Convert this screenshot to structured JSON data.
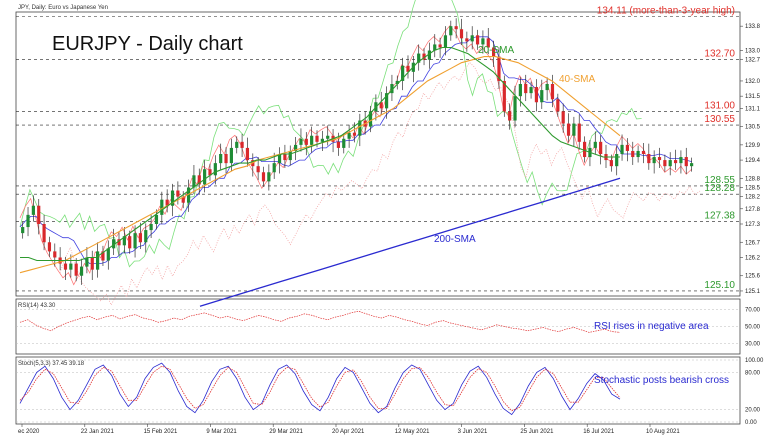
{
  "header": {
    "info": "JPY, Daily: Euro vs Japanese Yen",
    "title": "EURJPY - Daily chart"
  },
  "chart_data": {
    "type": "candlestick",
    "title": "EURJPY - Daily chart",
    "x_ticks": [
      "ec 2020",
      "22 Jan 2021",
      "15 Feb 2021",
      "9 Mar 2021",
      "29 Mar 2021",
      "20 Apr 2021",
      "12 May 2021",
      "3 Jun 2021",
      "25 Jun 2021",
      "16 Jul 2021",
      "10 Aug 2021"
    ],
    "y_ticks": [
      "133.8",
      "133.0",
      "132.7",
      "132.0",
      "131.5",
      "131.1",
      "130.5",
      "129.9",
      "129.4",
      "128.8",
      "128.5",
      "128.2",
      "127.8",
      "127.3",
      "126.7",
      "126.2",
      "125.6",
      "125.1"
    ],
    "ylim": [
      125.0,
      134.2
    ],
    "levels": [
      {
        "label": "134.11 (more-than-3-year high)",
        "value": 134.11,
        "color": "#e0302a"
      },
      {
        "label": "132.70",
        "value": 132.7,
        "color": "#e0302a"
      },
      {
        "label": "131.00",
        "value": 131.0,
        "color": "#e0302a"
      },
      {
        "label": "130.55",
        "value": 130.55,
        "color": "#e0302a"
      },
      {
        "label": "128.55",
        "value": 128.55,
        "color": "#2e9a2e"
      },
      {
        "label": "128.28",
        "value": 128.28,
        "color": "#2e9a2e"
      },
      {
        "label": "127.38",
        "value": 127.38,
        "color": "#2e9a2e"
      },
      {
        "label": "125.10",
        "value": 125.1,
        "color": "#2e9a2e"
      }
    ],
    "close": [
      127.2,
      127.6,
      127.9,
      127.3,
      126.7,
      126.4,
      126.2,
      126.0,
      125.8,
      126.0,
      125.6,
      125.9,
      126.2,
      125.8,
      126.4,
      126.1,
      126.5,
      126.8,
      126.6,
      126.9,
      126.5,
      127.0,
      126.7,
      127.1,
      127.3,
      127.6,
      128.1,
      127.9,
      128.4,
      128.2,
      128.0,
      128.5,
      128.9,
      128.6,
      129.1,
      128.9,
      129.3,
      129.6,
      129.3,
      129.8,
      130.0,
      129.8,
      129.4,
      129.2,
      129.0,
      128.7,
      129.0,
      129.3,
      129.6,
      129.4,
      129.7,
      129.9,
      130.1,
      129.9,
      130.2,
      130.0,
      130.1,
      130.2,
      130.0,
      129.8,
      130.1,
      130.3,
      130.2,
      130.7,
      130.5,
      131.0,
      131.3,
      131.1,
      131.6,
      131.9,
      132.0,
      132.5,
      132.3,
      132.6,
      132.9,
      132.7,
      133.0,
      133.2,
      133.1,
      133.5,
      133.8,
      133.7,
      133.4,
      133.3,
      133.5,
      133.2,
      133.4,
      133.1,
      132.8,
      132.0,
      131.0,
      130.7,
      131.5,
      131.9,
      131.6,
      131.8,
      131.3,
      131.7,
      131.9,
      131.4,
      131.0,
      130.6,
      130.2,
      130.6,
      130.0,
      129.5,
      129.8,
      130.0,
      129.6,
      129.4,
      129.2,
      129.6,
      129.9,
      129.7,
      129.5,
      129.7,
      129.6,
      129.3,
      129.5,
      129.4,
      129.2,
      129.4,
      129.3,
      129.5,
      129.2,
      129.3
    ],
    "sma20": [
      126.2,
      126.2,
      126.1,
      126.1,
      126.1,
      126.1,
      126.1,
      126.1,
      126.2,
      126.2,
      126.4,
      126.6,
      126.8,
      127.0,
      127.2,
      127.4,
      127.6,
      127.8,
      128.0,
      128.2,
      128.4,
      128.6,
      128.8,
      129.0,
      129.1,
      129.2,
      129.3,
      129.3,
      129.4,
      129.4,
      129.5,
      129.6,
      129.6,
      129.7,
      129.8,
      129.9,
      130.0,
      130.1,
      130.2,
      130.4,
      130.6,
      130.8,
      131.1,
      131.4,
      131.7,
      132.0,
      132.3,
      132.6,
      132.8,
      133.0,
      133.1,
      133.1,
      133.0,
      132.9,
      132.7,
      132.5,
      132.3,
      132.0,
      131.7,
      131.4,
      131.1,
      130.8,
      130.5,
      130.2,
      130.0,
      129.9,
      129.8,
      129.7,
      129.6,
      129.5,
      129.5,
      129.5
    ],
    "sma40": [
      125.7,
      125.8,
      125.9,
      126.0,
      126.1,
      126.3,
      126.5,
      126.7,
      126.9,
      127.1,
      127.3,
      127.5,
      127.7,
      127.9,
      128.1,
      128.3,
      128.5,
      128.7,
      128.9,
      129.1,
      129.2,
      129.4,
      129.5,
      129.6,
      129.7,
      129.8,
      129.9,
      130.0,
      130.1,
      130.3,
      130.5,
      130.7,
      130.9,
      131.1,
      131.4,
      131.7,
      132.0,
      132.2,
      132.4,
      132.6,
      132.7,
      132.8,
      132.8,
      132.7,
      132.6,
      132.4,
      132.2,
      132.0,
      131.7,
      131.4,
      131.1,
      130.8,
      130.5,
      130.2
    ],
    "sma200": [
      124.6,
      124.8,
      125.0,
      125.2,
      125.4,
      125.6,
      125.8,
      126.0,
      126.2,
      126.4,
      126.6,
      126.8,
      127.0,
      127.2,
      127.4,
      127.6,
      127.8,
      128.0,
      128.2,
      128.4,
      128.6,
      128.8
    ],
    "annotations": [
      "20-SMA",
      "40-SMA",
      "200-SMA"
    ],
    "rsi": {
      "label": "RSI(14) 43.30",
      "note": "RSI rises in negative area",
      "ticks": [
        "70.00",
        "50.00",
        "30.00"
      ],
      "values": [
        55,
        58,
        52,
        48,
        45,
        50,
        54,
        57,
        60,
        62,
        58,
        61,
        63,
        59,
        62,
        64,
        60,
        58,
        55,
        57,
        60,
        58,
        62,
        64,
        66,
        63,
        60,
        62,
        59,
        57,
        60,
        63,
        61,
        58,
        56,
        60,
        62,
        65,
        63,
        60,
        58,
        61,
        63,
        66,
        68,
        65,
        62,
        60,
        63,
        61,
        58,
        56,
        53,
        51,
        55,
        57,
        54,
        52,
        50,
        48,
        46,
        49,
        52,
        50,
        48,
        47,
        45,
        47,
        49,
        46,
        44,
        47,
        49,
        46,
        43,
        45,
        47,
        44,
        43
      ]
    },
    "stochastic": {
      "label": "Stoch(5,3,3) 37.45 39.18",
      "note": "Stochastic posts bearish cross",
      "ticks": [
        "100.00",
        "80.00",
        "20.00",
        "0.00"
      ],
      "k": [
        30,
        55,
        80,
        90,
        70,
        40,
        20,
        35,
        60,
        85,
        92,
        75,
        45,
        25,
        40,
        70,
        88,
        95,
        80,
        50,
        25,
        15,
        35,
        65,
        85,
        90,
        70,
        40,
        20,
        30,
        60,
        85,
        92,
        78,
        50,
        28,
        18,
        40,
        70,
        88,
        80,
        55,
        30,
        15,
        25,
        55,
        80,
        92,
        85,
        60,
        35,
        20,
        30,
        60,
        82,
        90,
        72,
        45,
        22,
        12,
        30,
        58,
        80,
        88,
        70,
        42,
        20,
        38,
        62,
        78,
        68,
        45,
        37
      ],
      "d": [
        35,
        48,
        70,
        85,
        78,
        55,
        32,
        30,
        50,
        75,
        88,
        82,
        58,
        35,
        35,
        58,
        80,
        90,
        85,
        62,
        38,
        22,
        28,
        52,
        75,
        88,
        80,
        55,
        30,
        28,
        48,
        75,
        88,
        85,
        62,
        38,
        24,
        32,
        58,
        80,
        84,
        65,
        40,
        22,
        22,
        45,
        70,
        86,
        88,
        72,
        48,
        28,
        26,
        48,
        72,
        86,
        80,
        58,
        33,
        18,
        24,
        48,
        72,
        85,
        78,
        55,
        32,
        32,
        52,
        72,
        72,
        55,
        39
      ]
    }
  }
}
